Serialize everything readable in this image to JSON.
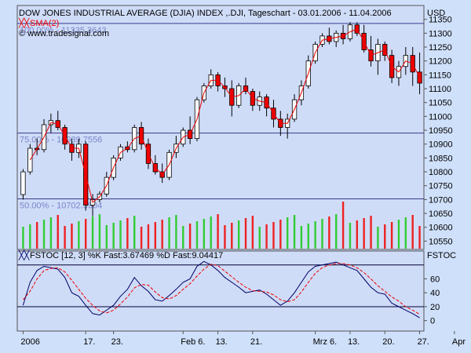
{
  "header": {
    "title": "DOW JONES INDUSTRIAL AVERAGE (DJIA) INDEX ,.DJI, Tageschart - 03.01.2006 - 11.04.2006",
    "sma_label": "SMA(2)",
    "copyright": "© www.tradesignal.com",
    "currency": "USD"
  },
  "stoch_panel": {
    "label": "FSTOC [12, 3] %K Fast:3.67469 %D Fast:9.04417",
    "axis_title": "FSTOC"
  },
  "fib_labels": [
    {
      "text": "100.00% - 11335.3643",
      "level": 11335.3643
    },
    {
      "text": "75.00% - 10939.7556",
      "level": 10939.7556
    },
    {
      "text": "50.00% - 10702.3904",
      "level": 10702.3904
    }
  ],
  "colors": {
    "up_candle": "#ffffff",
    "down_candle": "#ee0000",
    "sma": "#ee0000",
    "volume_up": "#33cc33",
    "volume_down": "#ee2222",
    "k_line": "#000066",
    "d_line": "#ee0000",
    "panel_bg": "#cfdcf8",
    "fib_line": "#3a3a8a"
  },
  "chart_data": [
    {
      "type": "candlestick",
      "title": "DOW JONES INDUSTRIAL AVERAGE (DJIA) INDEX ,.DJI, Tageschart - 03.01.2006 - 11.04.2006",
      "ylim": [
        10520,
        11400
      ],
      "yticks": [
        10550,
        10600,
        10650,
        10700,
        10750,
        10800,
        10850,
        10900,
        10950,
        11000,
        11050,
        11100,
        11150,
        11200,
        11250,
        11300,
        11350
      ],
      "x_tick_labels": [
        {
          "label": "2006",
          "index": 0
        },
        {
          "label": "17.",
          "index": 9
        },
        {
          "label": "23.",
          "index": 13
        },
        {
          "label": "Feb 6.",
          "index": 23
        },
        {
          "label": "13.",
          "index": 28
        },
        {
          "label": "21.",
          "index": 33
        },
        {
          "label": "Mrz 6.",
          "index": 42
        },
        {
          "label": "13.",
          "index": 47
        },
        {
          "label": "20.",
          "index": 52
        },
        {
          "label": "27.",
          "index": 57
        },
        {
          "label": "Apr",
          "index": 62
        }
      ],
      "ohlc": [
        [
          10718,
          10810,
          10700,
          10800
        ],
        [
          10800,
          10900,
          10790,
          10885
        ],
        [
          10885,
          10920,
          10860,
          10880
        ],
        [
          10880,
          10990,
          10870,
          10970
        ],
        [
          10970,
          11010,
          10940,
          10985
        ],
        [
          10985,
          11020,
          10950,
          10960
        ],
        [
          10960,
          10970,
          10880,
          10900
        ],
        [
          10900,
          10920,
          10840,
          10870
        ],
        [
          10870,
          10920,
          10850,
          10900
        ],
        [
          10900,
          10910,
          10660,
          10680
        ],
        [
          10680,
          10720,
          10640,
          10700
        ],
        [
          10700,
          10730,
          10690,
          10720
        ],
        [
          10720,
          10800,
          10710,
          10780
        ],
        [
          10780,
          10860,
          10770,
          10850
        ],
        [
          10850,
          10900,
          10840,
          10890
        ],
        [
          10890,
          10910,
          10870,
          10880
        ],
        [
          10880,
          10970,
          10870,
          10960
        ],
        [
          10960,
          10980,
          10880,
          10900
        ],
        [
          10900,
          10920,
          10810,
          10830
        ],
        [
          10830,
          10860,
          10790,
          10800
        ],
        [
          10800,
          10830,
          10760,
          10780
        ],
        [
          10780,
          10880,
          10770,
          10870
        ],
        [
          10870,
          10930,
          10850,
          10900
        ],
        [
          10900,
          10960,
          10890,
          10950
        ],
        [
          10950,
          11000,
          10900,
          10920
        ],
        [
          10920,
          11070,
          10910,
          11060
        ],
        [
          11060,
          11120,
          11050,
          11110
        ],
        [
          11110,
          11170,
          11100,
          11150
        ],
        [
          11150,
          11160,
          11090,
          11110
        ],
        [
          11110,
          11140,
          11070,
          11100
        ],
        [
          11100,
          11130,
          11000,
          11040
        ],
        [
          11040,
          11120,
          11030,
          11110
        ],
        [
          11110,
          11140,
          11080,
          11090
        ],
        [
          11090,
          11100,
          11020,
          11040
        ],
        [
          11040,
          11090,
          11020,
          11070
        ],
        [
          11070,
          11080,
          11000,
          11030
        ],
        [
          11030,
          11060,
          10960,
          10990
        ],
        [
          10990,
          11020,
          10930,
          10960
        ],
        [
          10960,
          11010,
          10920,
          10990
        ],
        [
          10990,
          11080,
          10980,
          11060
        ],
        [
          11060,
          11130,
          11040,
          11110
        ],
        [
          11110,
          11220,
          11100,
          11200
        ],
        [
          11200,
          11270,
          11190,
          11260
        ],
        [
          11260,
          11300,
          11250,
          11290
        ],
        [
          11290,
          11320,
          11260,
          11270
        ],
        [
          11270,
          11310,
          11250,
          11300
        ],
        [
          11300,
          11330,
          11260,
          11280
        ],
        [
          11280,
          11340,
          11270,
          11330
        ],
        [
          11330,
          11340,
          11290,
          11300
        ],
        [
          11300,
          11330,
          11230,
          11240
        ],
        [
          11240,
          11290,
          11180,
          11200
        ],
        [
          11200,
          11280,
          11150,
          11260
        ],
        [
          11260,
          11270,
          11200,
          11220
        ],
        [
          11220,
          11240,
          11120,
          11140
        ],
        [
          11140,
          11200,
          11110,
          11180
        ],
        [
          11180,
          11250,
          11150,
          11220
        ],
        [
          11220,
          11250,
          11110,
          11160
        ],
        [
          11160,
          11230,
          11080,
          11120
        ]
      ],
      "sma_period": 2,
      "volume_colors_by_candle": true
    },
    {
      "type": "line",
      "title": "FSTOC [12, 3] %K Fast:3.67469 %D Fast:9.04417",
      "ylim": [
        -15,
        100
      ],
      "yticks": [
        0,
        20,
        40,
        60
      ],
      "reference_lines": [
        80,
        20
      ],
      "series": [
        {
          "name": "%K Fast",
          "values": [
            22,
            55,
            72,
            78,
            76,
            74,
            62,
            40,
            35,
            22,
            10,
            8,
            15,
            22,
            35,
            45,
            62,
            50,
            42,
            30,
            28,
            36,
            45,
            55,
            60,
            78,
            85,
            80,
            72,
            62,
            55,
            48,
            40,
            42,
            44,
            38,
            30,
            22,
            28,
            40,
            55,
            70,
            78,
            80,
            82,
            84,
            80,
            76,
            72,
            60,
            48,
            40,
            38,
            25,
            20,
            15,
            10,
            4
          ]
        },
        {
          "name": "%D Fast",
          "values": [
            30,
            42,
            60,
            72,
            75,
            76,
            70,
            58,
            45,
            32,
            22,
            14,
            11,
            15,
            24,
            34,
            47,
            52,
            51,
            41,
            33,
            31,
            36,
            45,
            53,
            64,
            74,
            81,
            79,
            71,
            63,
            55,
            48,
            43,
            42,
            41,
            37,
            30,
            27,
            30,
            41,
            55,
            68,
            76,
            80,
            82,
            82,
            80,
            76,
            69,
            60,
            50,
            42,
            34,
            28,
            20,
            15,
            9
          ]
        }
      ]
    }
  ]
}
